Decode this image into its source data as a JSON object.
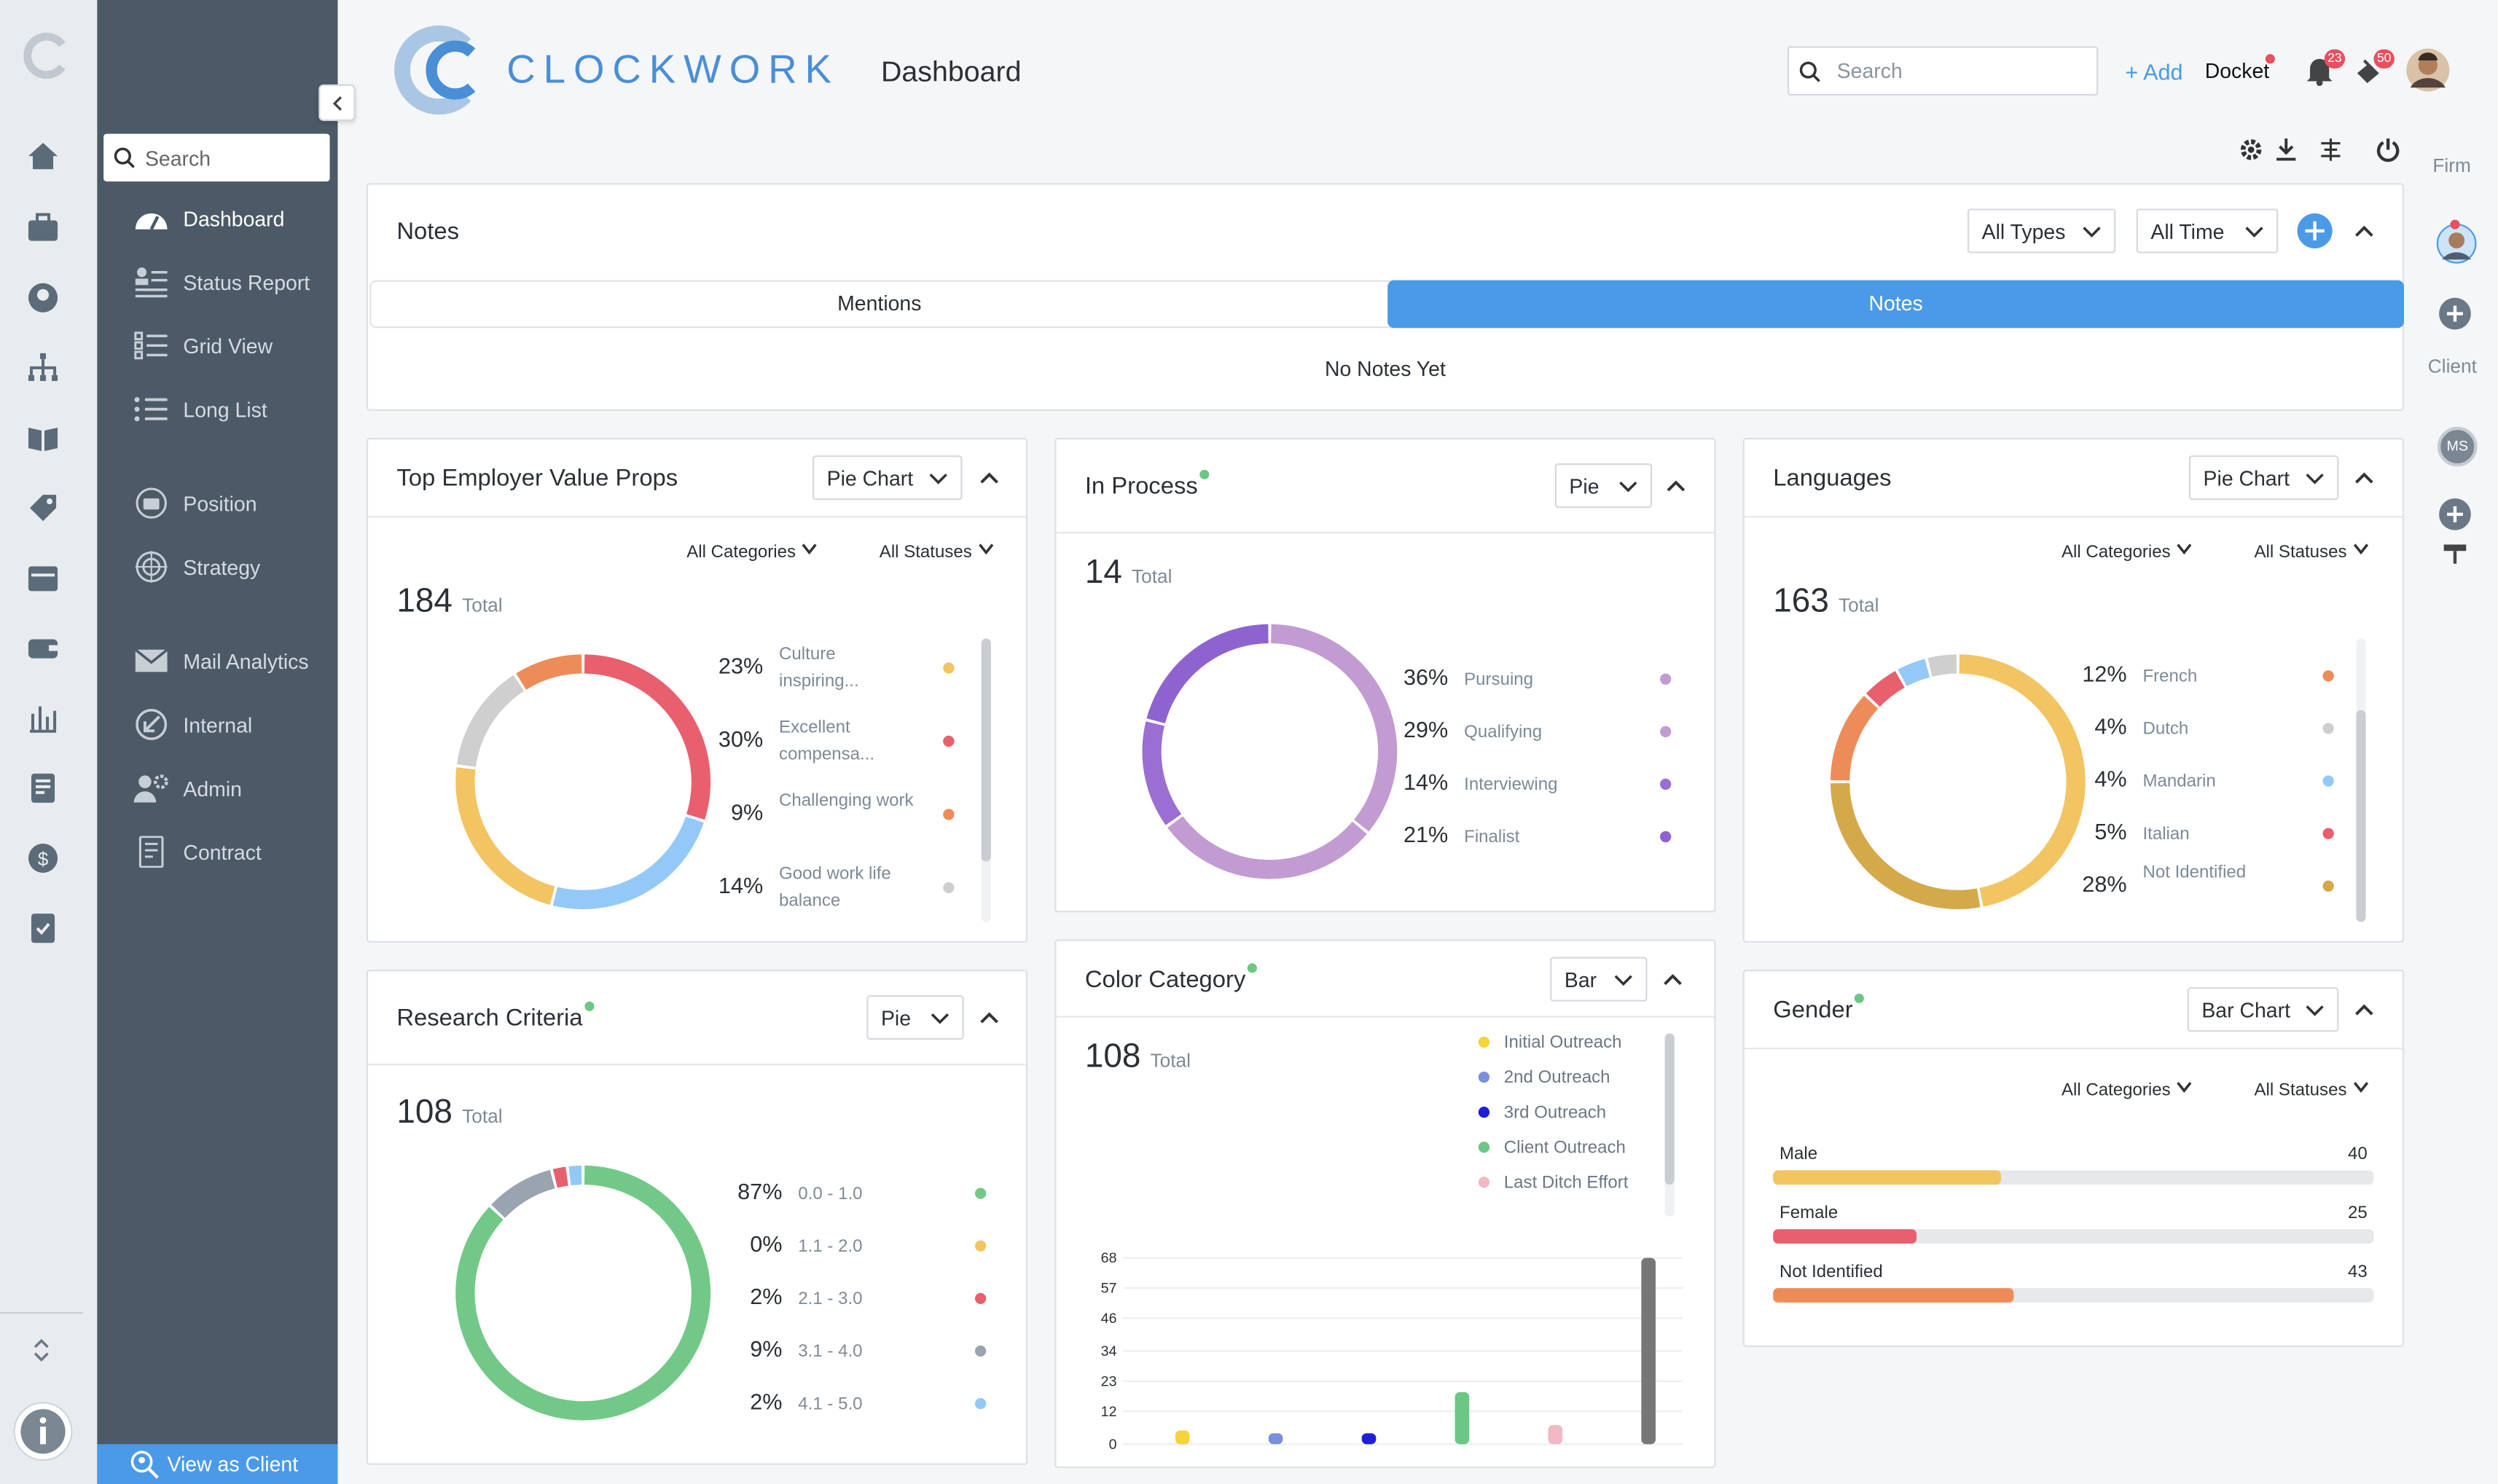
{
  "app": {
    "name": "CLOCKWORK",
    "page_title": "Dashboard"
  },
  "header": {
    "search_placeholder": "Search",
    "add_label": "+ Add",
    "docket_label": "Docket",
    "bell_badge": "23",
    "alert_badge": "50"
  },
  "sidebar": {
    "search_placeholder": "Search",
    "items": [
      {
        "label": "Dashboard"
      },
      {
        "label": "Status Report"
      },
      {
        "label": "Grid View"
      },
      {
        "label": "Long List"
      },
      {
        "label": "Position"
      },
      {
        "label": "Strategy"
      },
      {
        "label": "Mail Analytics"
      },
      {
        "label": "Internal"
      },
      {
        "label": "Admin"
      },
      {
        "label": "Contract"
      }
    ],
    "view_as_client": "View as Client"
  },
  "right_rail": {
    "firm_label": "Firm",
    "client_label": "Client",
    "initials": "MS"
  },
  "notes": {
    "title": "Notes",
    "type_filter": "All Types",
    "time_filter": "All Time",
    "tabs": [
      {
        "label": "Mentions"
      },
      {
        "label": "Notes"
      }
    ],
    "active_tab": "Notes",
    "empty_text": "No Notes Yet"
  },
  "filters": {
    "categories": "All Categories",
    "statuses": "All Statuses",
    "total_word": "Total"
  },
  "colors": {
    "accent": "#4a9ae8",
    "sidebar": "#4c5967",
    "green_dot": "#6cc785"
  },
  "chart_data": [
    {
      "type": "pie",
      "title": "Top Employer Value Props",
      "chart_selector": "Pie Chart",
      "total": "184",
      "slices": [
        {
          "label": "Culture inspiring...",
          "percent": "23%",
          "value": 23,
          "color": "#f2c462"
        },
        {
          "label": "Excellent compensa...",
          "percent": "30%",
          "value": 30,
          "color": "#e8606e"
        },
        {
          "label": "Challenging work",
          "percent": "9%",
          "value": 9,
          "color": "#ed8c58"
        },
        {
          "label": "Good work life balance",
          "percent": "14%",
          "value": 14,
          "color": "#cfcfcf"
        },
        {
          "label": "",
          "percent": "",
          "value": 24,
          "color": "#94c9f7"
        }
      ],
      "ring_order": [
        1,
        4,
        0,
        3,
        2
      ]
    },
    {
      "type": "pie",
      "title": "In Process",
      "chart_selector": "Pie",
      "total": "14",
      "slices": [
        {
          "label": "Pursuing",
          "percent": "36%",
          "value": 36,
          "color": "#c39bd3"
        },
        {
          "label": "Qualifying",
          "percent": "29%",
          "value": 29,
          "color": "#c39bd3"
        },
        {
          "label": "Interviewing",
          "percent": "14%",
          "value": 14,
          "color": "#9b6fd1"
        },
        {
          "label": "Finalist",
          "percent": "21%",
          "value": 21,
          "color": "#8e63cf"
        }
      ],
      "ring_order": [
        0,
        1,
        2,
        3
      ]
    },
    {
      "type": "pie",
      "title": "Languages",
      "chart_selector": "Pie Chart",
      "total": "163",
      "slices": [
        {
          "label": "French",
          "percent": "12%",
          "value": 12,
          "color": "#ed8c58"
        },
        {
          "label": "Dutch",
          "percent": "4%",
          "value": 4,
          "color": "#cfcfcf"
        },
        {
          "label": "Mandarin",
          "percent": "4%",
          "value": 4,
          "color": "#94c9f7"
        },
        {
          "label": "Italian",
          "percent": "5%",
          "value": 5,
          "color": "#e8606e"
        },
        {
          "label": "Not Identified",
          "percent": "28%",
          "value": 28,
          "color": "#d4a94a"
        },
        {
          "label": "",
          "percent": "",
          "value": 47,
          "color": "#f2c462"
        }
      ],
      "ring_order": [
        5,
        4,
        0,
        3,
        2,
        1
      ]
    },
    {
      "type": "pie",
      "title": "Research Criteria",
      "chart_selector": "Pie",
      "total": "108",
      "slices": [
        {
          "label": "0.0 - 1.0",
          "percent": "87%",
          "value": 87,
          "color": "#72c987"
        },
        {
          "label": "1.1 - 2.0",
          "percent": "0%",
          "value": 0,
          "color": "#f2c462"
        },
        {
          "label": "2.1 - 3.0",
          "percent": "2%",
          "value": 2,
          "color": "#e8606e"
        },
        {
          "label": "3.1 - 4.0",
          "percent": "9%",
          "value": 9,
          "color": "#9aa4b0"
        },
        {
          "label": "4.1 - 5.0",
          "percent": "2%",
          "value": 2,
          "color": "#94c9f7"
        }
      ],
      "ring_order": [
        0,
        3,
        2,
        4
      ]
    },
    {
      "type": "bar",
      "title": "Color Category",
      "chart_selector": "Bar",
      "total": "108",
      "categories": [
        "Initial Outreach",
        "2nd Outreach",
        "3rd Outreach",
        "Client Outreach",
        "Last Ditch Effort",
        ""
      ],
      "values": [
        5,
        4,
        4,
        19,
        7,
        68
      ],
      "colors": [
        "#f5d33b",
        "#7b8fdc",
        "#1f1fd6",
        "#6cc785",
        "#f2b8c4",
        "#777777"
      ],
      "yticks": [
        0,
        12,
        23,
        34,
        46,
        57,
        68
      ],
      "ylim": [
        0,
        68
      ]
    },
    {
      "type": "bar",
      "title": "Gender",
      "chart_selector": "Bar Chart",
      "categories": [
        "Male",
        "Female",
        "Not Identified"
      ],
      "values": [
        40,
        25,
        43
      ],
      "fraction": [
        0.38,
        0.24,
        0.4
      ],
      "colors": [
        "#f2c462",
        "#e8606e",
        "#ed8c58"
      ]
    }
  ]
}
